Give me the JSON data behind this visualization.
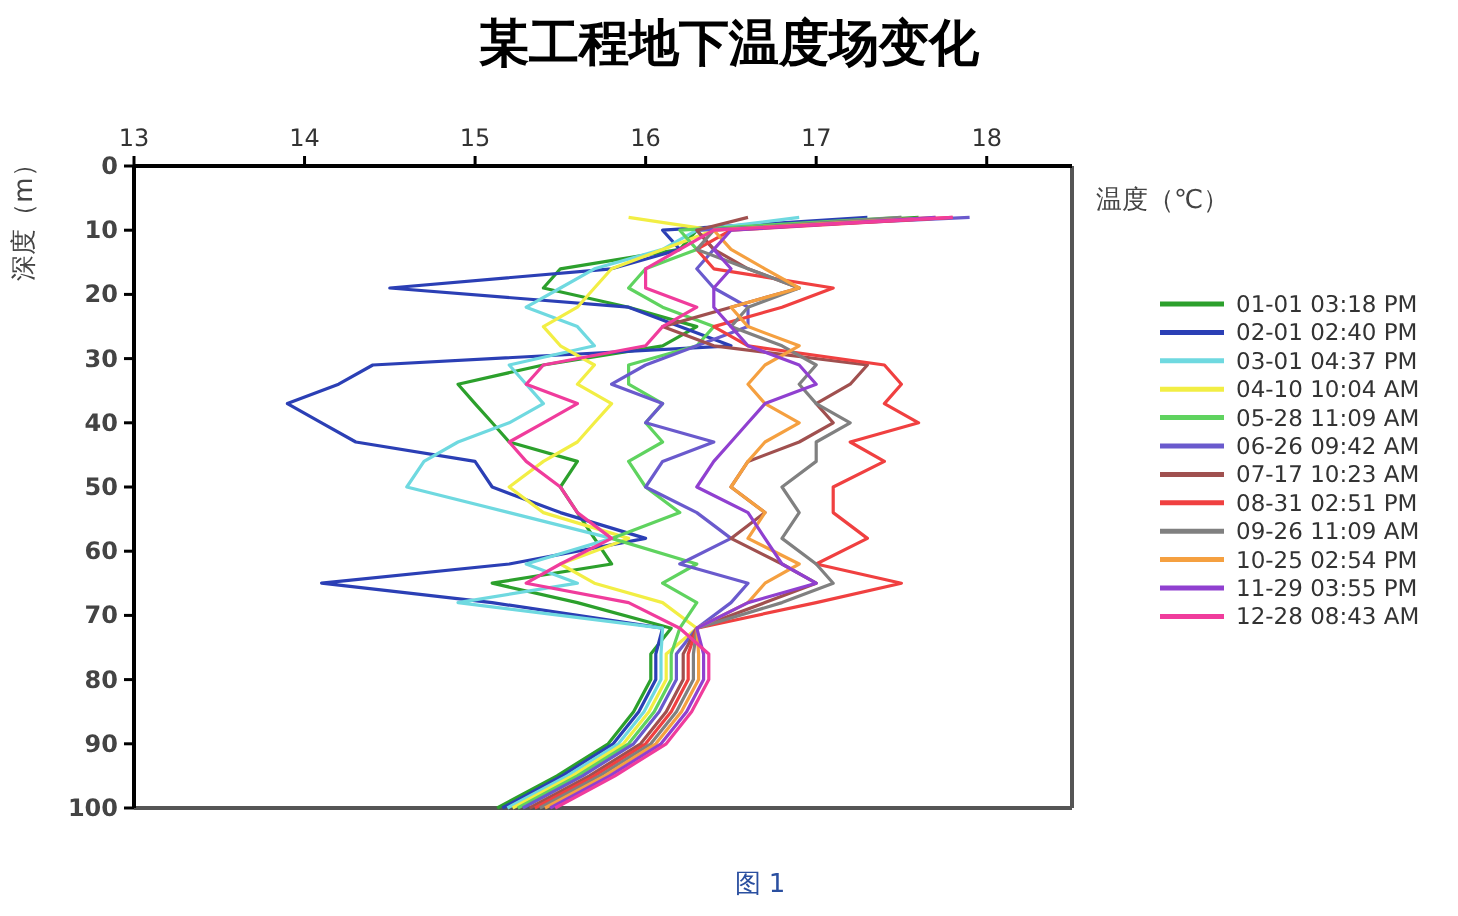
{
  "chart_data": {
    "type": "line",
    "title": "某工程地下温度场变化",
    "xlabel": "温度（℃）",
    "ylabel": "深度（m）",
    "annotations": [
      "图 1"
    ],
    "xlim": [
      13,
      18.5
    ],
    "ylim": [
      100,
      0
    ],
    "xticks": [
      13,
      14,
      15,
      16,
      17,
      18
    ],
    "yticks": [
      0,
      10,
      20,
      30,
      40,
      50,
      60,
      70,
      80,
      90,
      100
    ],
    "legend": "right",
    "series": [
      {
        "name": "01-01 03:18 PM",
        "color": "#2ca02c",
        "x": [
          17.6,
          16.3,
          16.2,
          15.5,
          15.4,
          15.9,
          16.3,
          16.1,
          15.4,
          14.9,
          15.0,
          15.1,
          15.2,
          15.6,
          15.5,
          15.6,
          15.7,
          15.8,
          15.1,
          15.6,
          16.15,
          16.03,
          16.03,
          15.93,
          15.78,
          15.48,
          15.13
        ],
        "values": [
          8,
          10,
          13,
          16,
          19,
          22,
          25,
          28,
          31,
          34,
          37,
          40,
          43,
          46,
          50,
          54,
          58,
          62,
          65,
          68,
          72,
          76,
          80,
          85,
          90,
          95,
          100
        ]
      },
      {
        "name": "02-01 02:40 PM",
        "color": "#2b3fb5",
        "x": [
          17.3,
          16.1,
          16.2,
          15.8,
          14.5,
          15.9,
          16.2,
          16.5,
          14.4,
          14.2,
          13.9,
          14.1,
          14.3,
          15.0,
          15.1,
          15.5,
          16.0,
          15.2,
          14.1,
          15.1,
          16.1,
          16.06,
          16.06,
          15.96,
          15.81,
          15.51,
          15.16
        ],
        "values": [
          8,
          10,
          13,
          16,
          19,
          22,
          25,
          28,
          31,
          34,
          37,
          40,
          43,
          46,
          50,
          54,
          58,
          62,
          65,
          68,
          72,
          76,
          80,
          85,
          90,
          95,
          100
        ]
      },
      {
        "name": "03-01 04:37 PM",
        "color": "#6fd9e0",
        "x": [
          16.9,
          16.3,
          16.1,
          15.7,
          15.5,
          15.3,
          15.6,
          15.7,
          15.2,
          15.3,
          15.4,
          15.2,
          14.9,
          14.7,
          14.6,
          15.2,
          15.8,
          15.3,
          15.6,
          14.9,
          16.1,
          16.09,
          16.09,
          15.99,
          15.84,
          15.54,
          15.19
        ],
        "values": [
          8,
          10,
          13,
          16,
          19,
          22,
          25,
          28,
          31,
          34,
          37,
          40,
          43,
          46,
          50,
          54,
          58,
          62,
          65,
          68,
          72,
          76,
          80,
          85,
          90,
          95,
          100
        ]
      },
      {
        "name": "04-10 10:04 AM",
        "color": "#f2ee44",
        "x": [
          15.9,
          16.4,
          16.1,
          15.8,
          15.7,
          15.6,
          15.4,
          15.5,
          15.7,
          15.6,
          15.8,
          15.7,
          15.6,
          15.4,
          15.2,
          15.4,
          15.9,
          15.5,
          15.7,
          16.1,
          16.3,
          16.12,
          16.12,
          16.02,
          15.87,
          15.57,
          15.22
        ],
        "values": [
          8,
          10,
          13,
          16,
          19,
          22,
          25,
          28,
          31,
          34,
          37,
          40,
          43,
          46,
          50,
          54,
          58,
          62,
          65,
          68,
          72,
          76,
          80,
          85,
          90,
          95,
          100
        ]
      },
      {
        "name": "05-28 11:09 AM",
        "color": "#5fd35f",
        "x": [
          17.5,
          16.2,
          16.3,
          16.0,
          15.9,
          16.1,
          16.4,
          16.3,
          15.9,
          15.9,
          16.1,
          16.0,
          16.1,
          15.9,
          16.0,
          16.2,
          15.8,
          16.3,
          16.1,
          16.3,
          16.2,
          16.15,
          16.15,
          16.05,
          15.9,
          15.6,
          15.25
        ],
        "values": [
          8,
          10,
          13,
          16,
          19,
          22,
          25,
          28,
          31,
          34,
          37,
          40,
          43,
          46,
          50,
          54,
          58,
          62,
          65,
          68,
          72,
          76,
          80,
          85,
          90,
          95,
          100
        ]
      },
      {
        "name": "06-26 09:42 AM",
        "color": "#6a5acd",
        "x": [
          17.9,
          16.3,
          16.4,
          16.3,
          16.4,
          16.6,
          16.6,
          16.3,
          16.0,
          15.8,
          16.1,
          16.0,
          16.4,
          16.1,
          16.0,
          16.3,
          16.5,
          16.2,
          16.6,
          16.5,
          16.3,
          16.18,
          16.18,
          16.08,
          15.93,
          15.63,
          15.28
        ],
        "values": [
          8,
          10,
          13,
          16,
          19,
          22,
          25,
          28,
          31,
          34,
          37,
          40,
          43,
          46,
          50,
          54,
          58,
          62,
          65,
          68,
          72,
          76,
          80,
          85,
          90,
          95,
          100
        ]
      },
      {
        "name": "07-17 10:23 AM",
        "color": "#a0504f",
        "x": [
          16.6,
          16.3,
          16.4,
          16.6,
          16.9,
          16.5,
          16.1,
          16.4,
          17.3,
          17.2,
          17.0,
          17.1,
          16.9,
          16.6,
          16.5,
          16.7,
          16.5,
          16.8,
          17.0,
          16.7,
          16.3,
          16.22,
          16.22,
          16.12,
          15.97,
          15.67,
          15.32
        ],
        "values": [
          8,
          10,
          13,
          16,
          19,
          22,
          25,
          28,
          31,
          34,
          37,
          40,
          43,
          46,
          50,
          54,
          58,
          62,
          65,
          68,
          72,
          76,
          80,
          85,
          90,
          95,
          100
        ]
      },
      {
        "name": "08-31 02:51 PM",
        "color": "#f04040",
        "x": [
          17.8,
          16.5,
          16.3,
          16.4,
          17.1,
          16.8,
          16.4,
          16.6,
          17.4,
          17.5,
          17.4,
          17.6,
          17.2,
          17.4,
          17.1,
          17.1,
          17.3,
          17.0,
          17.5,
          17.0,
          16.3,
          16.25,
          16.25,
          16.15,
          16.0,
          15.7,
          15.35
        ],
        "values": [
          8,
          10,
          13,
          16,
          19,
          22,
          25,
          28,
          31,
          34,
          37,
          40,
          43,
          46,
          50,
          54,
          58,
          62,
          65,
          68,
          72,
          76,
          80,
          85,
          90,
          95,
          100
        ]
      },
      {
        "name": "09-26 11:09 AM",
        "color": "#808080",
        "x": [
          17.5,
          16.4,
          16.3,
          16.6,
          16.9,
          16.6,
          16.5,
          16.8,
          17.0,
          16.9,
          17.0,
          17.2,
          17.0,
          17.0,
          16.8,
          16.9,
          16.8,
          17.0,
          17.1,
          16.8,
          16.3,
          16.28,
          16.28,
          16.18,
          16.03,
          15.73,
          15.38
        ],
        "values": [
          8,
          10,
          13,
          16,
          19,
          22,
          25,
          28,
          31,
          34,
          37,
          40,
          43,
          46,
          50,
          54,
          58,
          62,
          65,
          68,
          72,
          76,
          80,
          85,
          90,
          95,
          100
        ]
      },
      {
        "name": "10-25 02:54 PM",
        "color": "#f5a040",
        "x": [
          17.7,
          16.4,
          16.5,
          16.7,
          16.9,
          16.5,
          16.6,
          16.9,
          16.7,
          16.6,
          16.7,
          16.9,
          16.7,
          16.6,
          16.5,
          16.7,
          16.6,
          16.9,
          16.7,
          16.6,
          16.3,
          16.31,
          16.31,
          16.21,
          16.06,
          15.76,
          15.41
        ],
        "values": [
          8,
          10,
          13,
          16,
          19,
          22,
          25,
          28,
          31,
          34,
          37,
          40,
          43,
          46,
          50,
          54,
          58,
          62,
          65,
          68,
          72,
          76,
          80,
          85,
          90,
          95,
          100
        ]
      },
      {
        "name": "11-29 03:55 PM",
        "color": "#9040d0",
        "x": [
          17.7,
          16.5,
          16.4,
          16.5,
          16.4,
          16.4,
          16.5,
          16.6,
          16.9,
          17.0,
          16.7,
          16.6,
          16.5,
          16.4,
          16.3,
          16.6,
          16.7,
          16.8,
          17.0,
          16.6,
          16.3,
          16.34,
          16.34,
          16.24,
          16.09,
          15.79,
          15.44
        ],
        "values": [
          8,
          10,
          13,
          16,
          19,
          22,
          25,
          28,
          31,
          34,
          37,
          40,
          43,
          46,
          50,
          54,
          58,
          62,
          65,
          68,
          72,
          76,
          80,
          85,
          90,
          95,
          100
        ]
      },
      {
        "name": "12-28 08:43 AM",
        "color": "#f03c9c",
        "x": [
          17.8,
          16.4,
          16.2,
          16.0,
          16.0,
          16.3,
          16.1,
          16.0,
          15.4,
          15.3,
          15.6,
          15.4,
          15.2,
          15.3,
          15.5,
          15.6,
          15.8,
          15.5,
          15.3,
          15.9,
          16.2,
          16.37,
          16.37,
          16.27,
          16.12,
          15.82,
          15.47
        ],
        "values": [
          8,
          10,
          13,
          16,
          19,
          22,
          25,
          28,
          31,
          34,
          37,
          40,
          43,
          46,
          50,
          54,
          58,
          62,
          65,
          68,
          72,
          76,
          80,
          85,
          90,
          95,
          100
        ]
      }
    ]
  }
}
